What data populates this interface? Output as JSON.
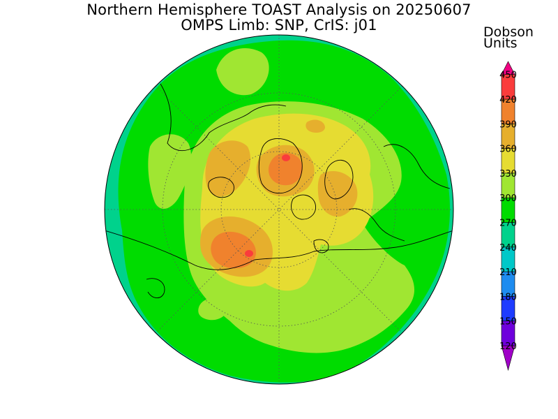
{
  "title": {
    "line1": "Northern Hemisphere TOAST Analysis on 20250607",
    "line2": "OMPS Limb: SNP, CrIS: j01"
  },
  "legend": {
    "title_line1": "Dobson",
    "title_line2": "Units",
    "levels": [
      120,
      150,
      180,
      210,
      240,
      270,
      300,
      330,
      360,
      390,
      420,
      450
    ],
    "colors": [
      "#a000c8",
      "#6e00dc",
      "#1e3cff",
      "#1e8cf0",
      "#00c8c8",
      "#00d28c",
      "#00dc00",
      "#a0e632",
      "#e6dc32",
      "#e6af2d",
      "#f0822d",
      "#fa3c3c",
      "#f00082"
    ]
  },
  "map": {
    "projection": "polar stereographic",
    "hemisphere": "Northern",
    "colors": {
      "c240": "#00d28c",
      "c270": "#00dc00",
      "c300": "#a0e632",
      "c330": "#e6dc32",
      "c360": "#e6af2d",
      "c390": "#f0822d",
      "c420": "#fa3c3c",
      "coast": "#000000",
      "grid": "#555555"
    }
  }
}
